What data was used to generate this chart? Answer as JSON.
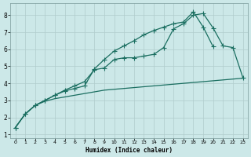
{
  "xlabel": "Humidex (Indice chaleur)",
  "xlim": [
    -0.5,
    23.5
  ],
  "ylim": [
    0.8,
    8.7
  ],
  "xticks": [
    0,
    1,
    2,
    3,
    4,
    5,
    6,
    7,
    8,
    9,
    10,
    11,
    12,
    13,
    14,
    15,
    16,
    17,
    18,
    19,
    20,
    21,
    22,
    23
  ],
  "yticks": [
    1,
    2,
    3,
    4,
    5,
    6,
    7,
    8
  ],
  "bg_color": "#cce8e8",
  "grid_color": "#b0cccc",
  "line_color": "#1a6e60",
  "line1_x": [
    0,
    1,
    2,
    3,
    4,
    5,
    6,
    7,
    8,
    9,
    10,
    11,
    12,
    13,
    14,
    15,
    16,
    17,
    18,
    19,
    20,
    21,
    22,
    23
  ],
  "line1_y": [
    1.4,
    2.2,
    2.7,
    3.0,
    3.3,
    3.6,
    3.85,
    4.1,
    4.8,
    4.9,
    5.4,
    5.5,
    5.5,
    5.6,
    5.7,
    6.1,
    7.2,
    7.5,
    8.0,
    8.1,
    7.25,
    6.2,
    6.1,
    4.35
  ],
  "line2_x": [
    0,
    1,
    2,
    3,
    4,
    5,
    6,
    7,
    8,
    9,
    10,
    11,
    12,
    13,
    14,
    15,
    16,
    17,
    18,
    19,
    20,
    21,
    22,
    23
  ],
  "line2_y": [
    1.4,
    2.2,
    2.7,
    3.0,
    3.3,
    3.55,
    3.7,
    3.85,
    4.85,
    5.4,
    5.9,
    6.2,
    6.5,
    6.85,
    7.1,
    7.3,
    7.5,
    7.6,
    8.2,
    7.3,
    6.15,
    null,
    null,
    null
  ],
  "line3_x": [
    0,
    1,
    2,
    3,
    4,
    5,
    6,
    7,
    8,
    9,
    10,
    11,
    12,
    13,
    14,
    15,
    16,
    17,
    18,
    19,
    20,
    21,
    22,
    23
  ],
  "line3_y": [
    1.4,
    2.2,
    2.7,
    2.95,
    3.1,
    3.2,
    3.3,
    3.4,
    3.5,
    3.6,
    3.65,
    3.7,
    3.75,
    3.8,
    3.85,
    3.9,
    3.95,
    4.0,
    4.05,
    4.1,
    4.15,
    4.2,
    4.25,
    4.3
  ]
}
